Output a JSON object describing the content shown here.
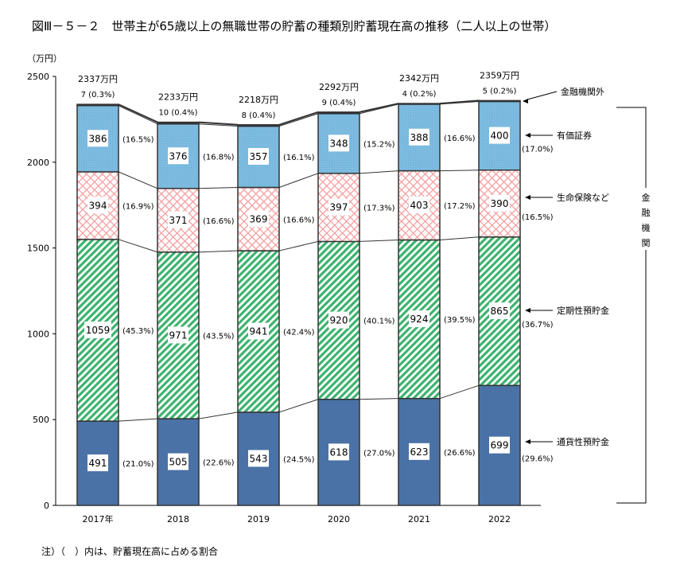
{
  "chart_data": {
    "type": "bar",
    "stacked": true,
    "title": "図Ⅲ－５－２　世帯主が65歳以上の無職世帯の貯蓄の種類別貯蓄現在高の推移（二人以上の世帯）",
    "ylabel": "（万円）",
    "ylim": [
      0,
      2500
    ],
    "yticks": [
      0,
      500,
      1000,
      1500,
      2000,
      2500
    ],
    "categories": [
      "2017年",
      "2018",
      "2019",
      "2020",
      "2021",
      "2022"
    ],
    "totals": [
      "2337万円",
      "2233万円",
      "2218万円",
      "2292万円",
      "2342万円",
      "2359万円"
    ],
    "series": [
      {
        "name": "通貨性預貯金",
        "color": "#4a72a6",
        "values": [
          491,
          505,
          543,
          618,
          623,
          699
        ],
        "shares": [
          "(21.0%)",
          "(22.6%)",
          "(24.5%)",
          "(27.0%)",
          "(26.6%)",
          "(29.6%)"
        ]
      },
      {
        "name": "定期性預貯金",
        "color": "#3cb36e",
        "values": [
          1059,
          971,
          941,
          920,
          924,
          865
        ],
        "shares": [
          "(45.3%)",
          "(43.5%)",
          "(42.4%)",
          "(40.1%)",
          "(39.5%)",
          "(36.7%)"
        ]
      },
      {
        "name": "生命保険など",
        "color": "#f4a0a0",
        "values": [
          394,
          371,
          369,
          397,
          403,
          390
        ],
        "shares": [
          "(16.9%)",
          "(16.6%)",
          "(16.6%)",
          "(17.3%)",
          "(17.2%)",
          "(16.5%)"
        ]
      },
      {
        "name": "有価証券",
        "color": "#7dbbe0",
        "values": [
          386,
          376,
          357,
          348,
          388,
          400
        ],
        "shares": [
          "(16.5%)",
          "(16.8%)",
          "(16.1%)",
          "(15.2%)",
          "(16.6%)",
          "(17.0%)"
        ]
      },
      {
        "name": "金融機関外",
        "color": "#333333",
        "values": [
          7,
          10,
          8,
          9,
          4,
          5
        ],
        "shares": [
          "(0.3%)",
          "(0.4%)",
          "(0.4%)",
          "(0.4%)",
          "(0.2%)",
          "(0.2%)"
        ]
      }
    ],
    "bracket_label": "金融機関",
    "note": "注）（　）内は、貯蓄現在高に占める割合",
    "grid": false,
    "legend": "right (arrow labels)"
  }
}
